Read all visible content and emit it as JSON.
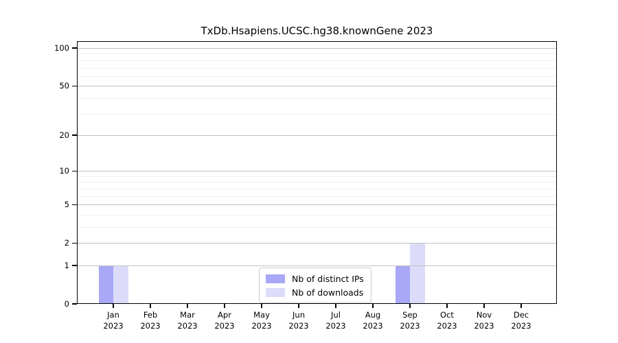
{
  "chart_data": {
    "type": "bar",
    "title": "TxDb.Hsapiens.UCSC.hg38.knownGene 2023",
    "x_months": [
      "Jan",
      "Feb",
      "Mar",
      "Apr",
      "May",
      "Jun",
      "Jul",
      "Aug",
      "Sep",
      "Oct",
      "Nov",
      "Dec"
    ],
    "x_year": "2023",
    "series": [
      {
        "name": "Nb of distinct IPs",
        "color": "#a8a8f6",
        "values": [
          1,
          0,
          0,
          0,
          0,
          0,
          0,
          0,
          1,
          0,
          0,
          0
        ]
      },
      {
        "name": "Nb of downloads",
        "color": "#dcdcfa",
        "values": [
          1,
          0,
          0,
          0,
          0,
          0,
          0,
          0,
          2,
          0,
          0,
          0
        ]
      }
    ],
    "y_scale": "log1p",
    "y_ticks": [
      0,
      1,
      2,
      5,
      10,
      20,
      50,
      100
    ],
    "y_minor_ticks": [
      3,
      4,
      6,
      7,
      8,
      9,
      30,
      40,
      60,
      70,
      80,
      90
    ],
    "ylim": [
      0,
      113
    ],
    "grid": true,
    "legend_position": "inside-bottom-center",
    "colors": {
      "axis": "#000000",
      "grid_major": "#c2c2c2",
      "grid_minor": "#efefef",
      "background": "#ffffff"
    }
  }
}
